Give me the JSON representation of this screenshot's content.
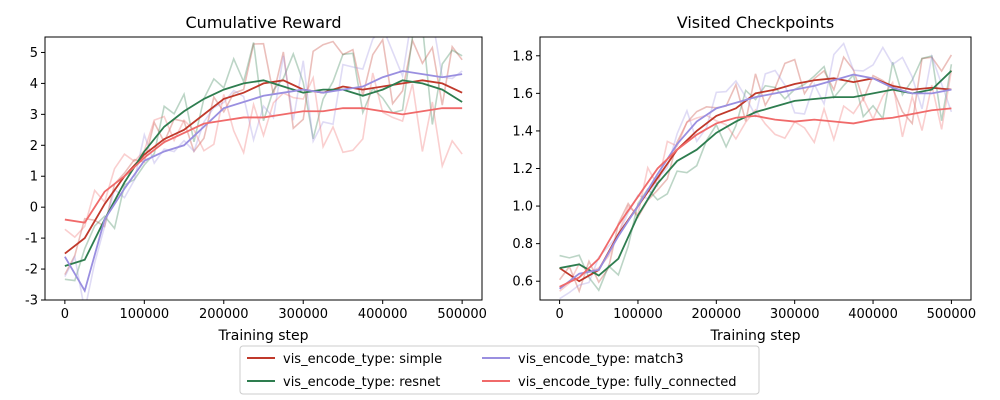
{
  "legend": {
    "entries": [
      {
        "name": "vis_encode_type: simple",
        "color": "#c0392b"
      },
      {
        "name": "vis_encode_type: resnet",
        "color": "#2e7d4f"
      },
      {
        "name": "vis_encode_type: match3",
        "color": "#9a8fe0"
      },
      {
        "name": "vis_encode_type: fully_connected",
        "color": "#f06a6a"
      }
    ]
  },
  "chart_data": [
    {
      "type": "line",
      "title": "Cumulative Reward",
      "xlabel": "Training step",
      "ylabel": "",
      "xlim": [
        -25000,
        525000
      ],
      "ylim": [
        -3,
        5.5
      ],
      "xticks": [
        0,
        100000,
        200000,
        300000,
        400000,
        500000
      ],
      "yticks": [
        -3,
        -2,
        -1,
        0,
        1,
        2,
        3,
        4,
        5
      ],
      "grid": false,
      "x": [
        0,
        25000,
        50000,
        75000,
        100000,
        125000,
        150000,
        175000,
        200000,
        225000,
        250000,
        275000,
        300000,
        325000,
        350000,
        375000,
        400000,
        425000,
        450000,
        475000,
        500000
      ],
      "series": [
        {
          "name": "vis_encode_type: simple",
          "color": "#c0392b",
          "values": [
            -1.5,
            -1.0,
            0.1,
            1.0,
            1.7,
            2.2,
            2.5,
            3.0,
            3.5,
            3.7,
            4.0,
            4.1,
            3.8,
            3.7,
            3.9,
            3.8,
            3.9,
            4.0,
            4.1,
            4.0,
            3.7
          ]
        },
        {
          "name": "vis_encode_type: resnet",
          "color": "#2e7d4f",
          "values": [
            -1.9,
            -1.7,
            -0.4,
            0.8,
            1.8,
            2.6,
            3.1,
            3.5,
            3.8,
            4.0,
            4.1,
            3.9,
            3.7,
            3.8,
            3.8,
            3.6,
            3.8,
            4.1,
            4.0,
            3.8,
            3.4
          ]
        },
        {
          "name": "vis_encode_type: match3",
          "color": "#9a8fe0",
          "values": [
            -1.6,
            -2.7,
            -0.4,
            0.6,
            1.5,
            1.8,
            2.0,
            2.6,
            3.2,
            3.4,
            3.6,
            3.7,
            3.8,
            3.7,
            3.8,
            3.9,
            4.2,
            4.4,
            4.3,
            4.2,
            4.3
          ]
        },
        {
          "name": "vis_encode_type: fully_connected",
          "color": "#f06a6a",
          "values": [
            -0.4,
            -0.5,
            0.5,
            1.0,
            1.6,
            2.1,
            2.4,
            2.7,
            2.8,
            2.9,
            2.9,
            3.0,
            3.1,
            3.1,
            3.2,
            3.2,
            3.1,
            3.0,
            3.1,
            3.2,
            3.2
          ]
        }
      ]
    },
    {
      "type": "line",
      "title": "Visited Checkpoints",
      "xlabel": "Training step",
      "ylabel": "",
      "xlim": [
        -25000,
        525000
      ],
      "ylim": [
        0.5,
        1.9
      ],
      "xticks": [
        0,
        100000,
        200000,
        300000,
        400000,
        500000
      ],
      "yticks": [
        0.6,
        0.8,
        1.0,
        1.2,
        1.4,
        1.6,
        1.8
      ],
      "grid": false,
      "x": [
        0,
        25000,
        50000,
        75000,
        100000,
        125000,
        150000,
        175000,
        200000,
        225000,
        250000,
        275000,
        300000,
        325000,
        350000,
        375000,
        400000,
        425000,
        450000,
        475000,
        500000
      ],
      "series": [
        {
          "name": "vis_encode_type: simple",
          "color": "#c0392b",
          "values": [
            0.67,
            0.6,
            0.66,
            0.85,
            1.0,
            1.15,
            1.3,
            1.4,
            1.48,
            1.52,
            1.6,
            1.62,
            1.65,
            1.67,
            1.68,
            1.66,
            1.68,
            1.64,
            1.62,
            1.63,
            1.62
          ]
        },
        {
          "name": "vis_encode_type: resnet",
          "color": "#2e7d4f",
          "values": [
            0.67,
            0.69,
            0.63,
            0.72,
            0.95,
            1.12,
            1.24,
            1.3,
            1.39,
            1.45,
            1.5,
            1.53,
            1.56,
            1.57,
            1.58,
            1.58,
            1.6,
            1.62,
            1.6,
            1.62,
            1.72
          ]
        },
        {
          "name": "vis_encode_type: match3",
          "color": "#9a8fe0",
          "values": [
            0.56,
            0.64,
            0.66,
            0.84,
            1.0,
            1.17,
            1.33,
            1.45,
            1.52,
            1.55,
            1.58,
            1.6,
            1.62,
            1.64,
            1.67,
            1.7,
            1.68,
            1.63,
            1.6,
            1.6,
            1.62
          ]
        },
        {
          "name": "vis_encode_type: fully_connected",
          "color": "#f06a6a",
          "values": [
            0.57,
            0.62,
            0.72,
            0.9,
            1.05,
            1.2,
            1.3,
            1.38,
            1.44,
            1.47,
            1.48,
            1.46,
            1.45,
            1.46,
            1.45,
            1.44,
            1.46,
            1.47,
            1.49,
            1.51,
            1.52
          ]
        }
      ]
    }
  ]
}
